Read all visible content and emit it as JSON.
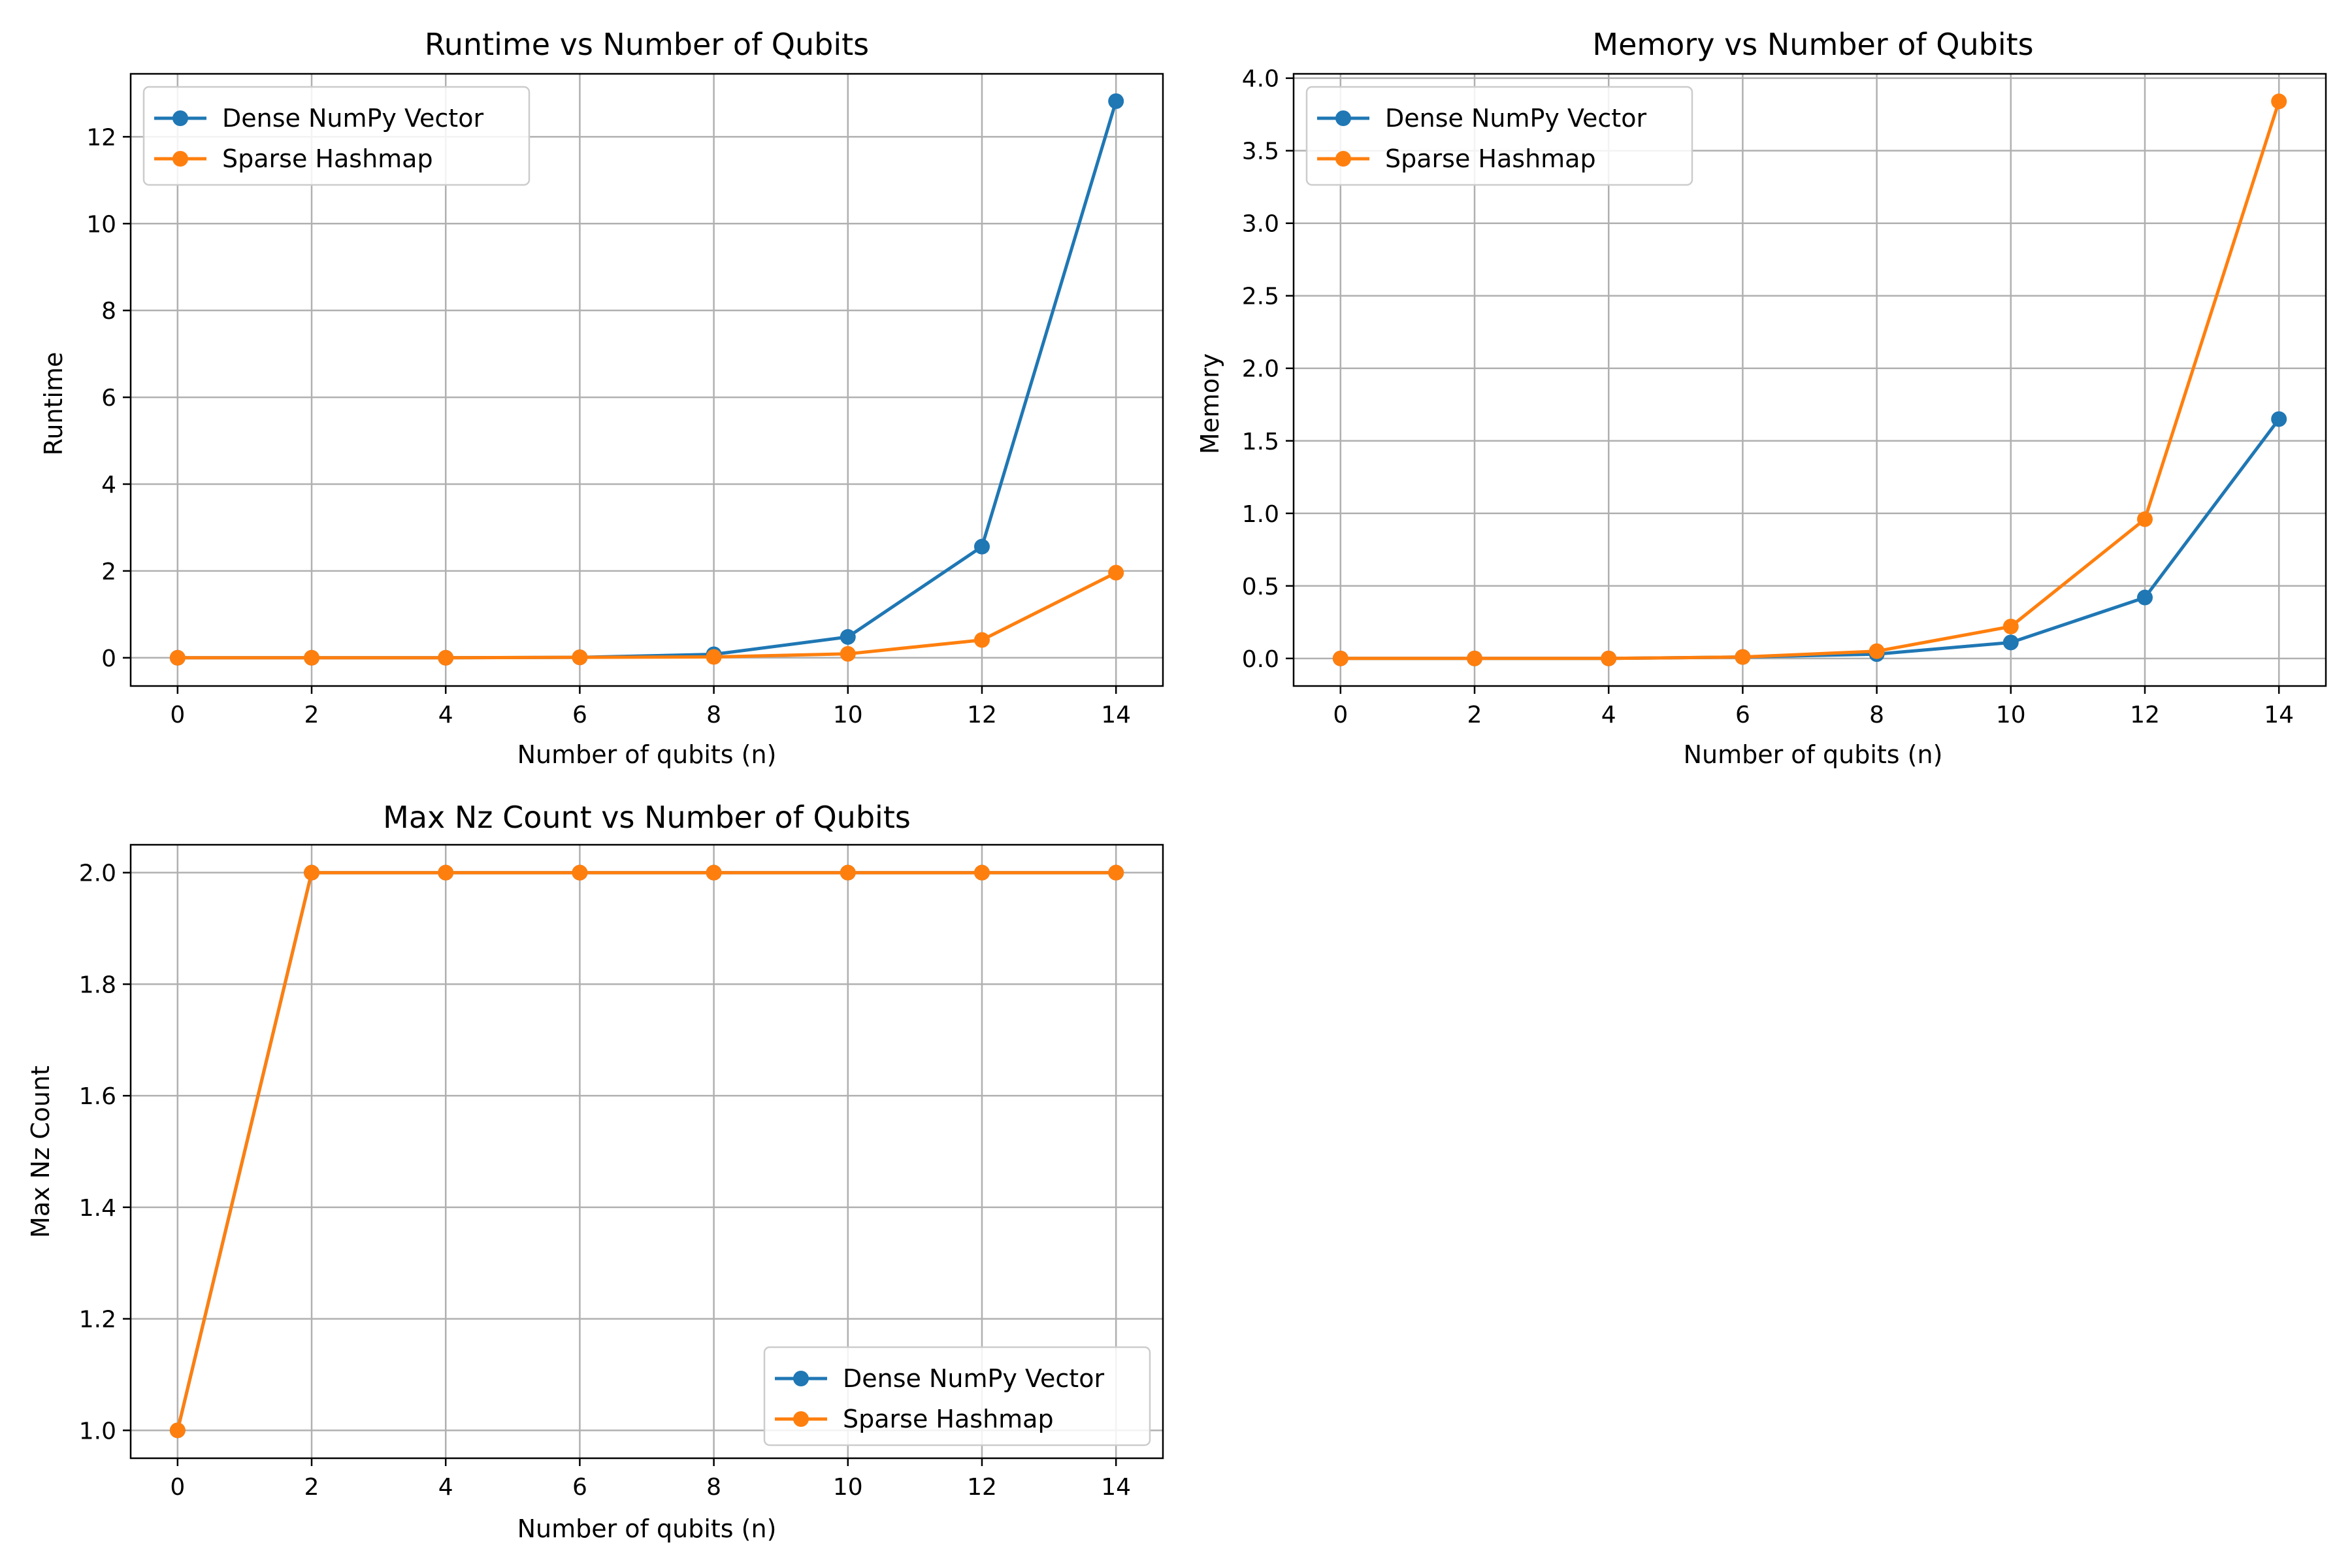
{
  "chart_data": [
    {
      "type": "line",
      "title": "Runtime vs Number of Qubits",
      "xlabel": "Number of qubits (n)",
      "ylabel": "Runtime",
      "x": [
        0,
        2,
        4,
        6,
        8,
        10,
        12,
        14
      ],
      "xlim": [
        -0.7,
        14.7
      ],
      "ylim": [
        -0.65,
        13.45
      ],
      "xticks": [
        0,
        2,
        4,
        6,
        8,
        10,
        12,
        14
      ],
      "yticks": [
        0,
        2,
        4,
        6,
        8,
        10,
        12
      ],
      "ytick_labels": [
        "0",
        "2",
        "4",
        "6",
        "8",
        "10",
        "12"
      ],
      "grid": true,
      "legend": "upper left",
      "series": [
        {
          "name": "Dense NumPy Vector",
          "color": "#1f77b4",
          "values": [
            0.0,
            0.0,
            0.0,
            0.01,
            0.08,
            0.48,
            2.56,
            12.82
          ]
        },
        {
          "name": "Sparse Hashmap",
          "color": "#ff7f0e",
          "values": [
            0.0,
            0.0,
            0.0,
            0.01,
            0.02,
            0.09,
            0.41,
            1.96
          ]
        }
      ]
    },
    {
      "type": "line",
      "title": "Memory vs Number of Qubits",
      "xlabel": "Number of qubits (n)",
      "ylabel": "Memory",
      "x": [
        0,
        2,
        4,
        6,
        8,
        10,
        12,
        14
      ],
      "xlim": [
        -0.7,
        14.7
      ],
      "ylim": [
        -0.19,
        4.03
      ],
      "xticks": [
        0,
        2,
        4,
        6,
        8,
        10,
        12,
        14
      ],
      "yticks": [
        0,
        0.5,
        1,
        1.5,
        2,
        2.5,
        3,
        3.5,
        4
      ],
      "ytick_labels": [
        "0.0",
        "0.5",
        "1.0",
        "1.5",
        "2.0",
        "2.5",
        "3.0",
        "3.5",
        "4.0"
      ],
      "grid": true,
      "legend": "upper left",
      "series": [
        {
          "name": "Dense NumPy Vector",
          "color": "#1f77b4",
          "values": [
            0.0,
            0.0,
            0.0,
            0.01,
            0.03,
            0.11,
            0.42,
            1.65
          ]
        },
        {
          "name": "Sparse Hashmap",
          "color": "#ff7f0e",
          "values": [
            0.0,
            0.0,
            0.0,
            0.01,
            0.05,
            0.22,
            0.96,
            3.84
          ]
        }
      ]
    },
    {
      "type": "line",
      "title": "Max Nz Count vs Number of Qubits",
      "xlabel": "Number of qubits (n)",
      "ylabel": "Max Nz Count",
      "x": [
        0,
        2,
        4,
        6,
        8,
        10,
        12,
        14
      ],
      "xlim": [
        -0.7,
        14.7
      ],
      "ylim": [
        0.95,
        2.05
      ],
      "xticks": [
        0,
        2,
        4,
        6,
        8,
        10,
        12,
        14
      ],
      "yticks": [
        1,
        1.2,
        1.4,
        1.6,
        1.8,
        2
      ],
      "ytick_labels": [
        "1.0",
        "1.2",
        "1.4",
        "1.6",
        "1.8",
        "2.0"
      ],
      "grid": true,
      "legend": "lower right",
      "series": [
        {
          "name": "Dense NumPy Vector",
          "color": "#1f77b4",
          "values": [
            1,
            2,
            2,
            2,
            2,
            2,
            2,
            2
          ]
        },
        {
          "name": "Sparse Hashmap",
          "color": "#ff7f0e",
          "values": [
            1,
            2,
            2,
            2,
            2,
            2,
            2,
            2
          ]
        }
      ]
    }
  ]
}
